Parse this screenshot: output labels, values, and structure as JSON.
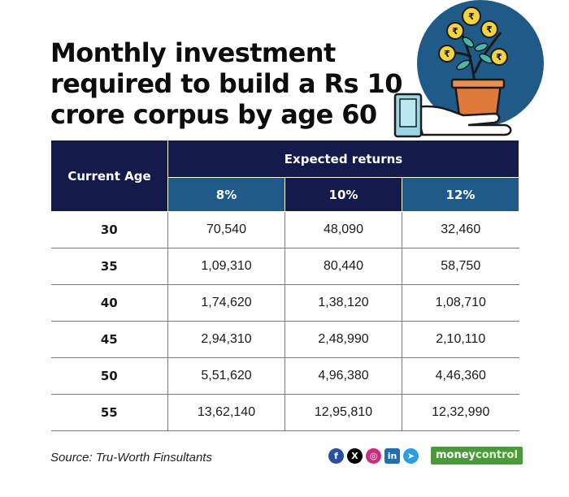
{
  "title": "Monthly investment required to build a Rs 10 crore corpus by age 60",
  "table": {
    "corner_header": "Current Age",
    "group_header": "Expected returns",
    "rates": [
      "8%",
      "10%",
      "12%"
    ],
    "rows": [
      {
        "age": "30",
        "values": [
          "70,540",
          "48,090",
          "32,460"
        ]
      },
      {
        "age": "35",
        "values": [
          "1,09,310",
          "80,440",
          "58,750"
        ]
      },
      {
        "age": "40",
        "values": [
          "1,74,620",
          "1,38,120",
          "1,08,710"
        ]
      },
      {
        "age": "45",
        "values": [
          "2,94,310",
          "2,48,990",
          "2,10,110"
        ]
      },
      {
        "age": "50",
        "values": [
          "5,51,620",
          "4,96,380",
          "4,46,360"
        ]
      },
      {
        "age": "55",
        "values": [
          "13,62,140",
          "12,95,810",
          "12,32,990"
        ]
      }
    ]
  },
  "source": "Source: Tru-Worth Finsultants",
  "social_icons": [
    "facebook-icon",
    "x-icon",
    "instagram-icon",
    "linkedin-icon",
    "telegram-icon"
  ],
  "brand": {
    "part1": "money",
    "part2": "control"
  },
  "colors": {
    "header_navy": "#141a4a",
    "header_blue": "#1f5a88",
    "brand_green": "#4a9a3c"
  }
}
